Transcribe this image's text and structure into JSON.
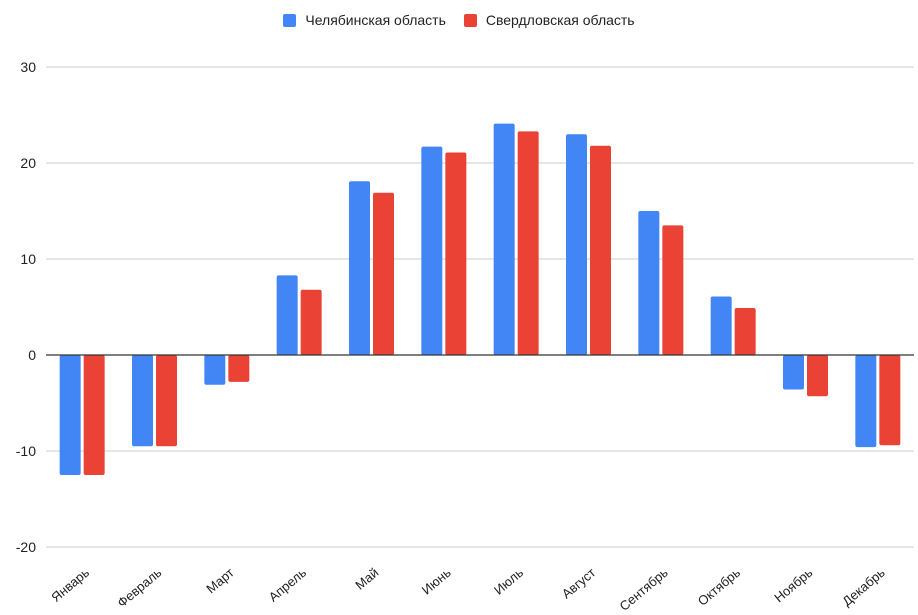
{
  "chart_data": {
    "type": "bar",
    "categories": [
      "Январь",
      "Февраль",
      "Март",
      "Апрель",
      "Май",
      "Июнь",
      "Июль",
      "Август",
      "Сентябрь",
      "Октябрь",
      "Ноябрь",
      "Декабрь"
    ],
    "series": [
      {
        "name": "Челябинская область",
        "color": "#4285F4",
        "values": [
          -12.5,
          -9.5,
          -3.1,
          8.3,
          18.1,
          21.7,
          24.1,
          23.0,
          15.0,
          6.1,
          -3.6,
          -9.6
        ]
      },
      {
        "name": "Свердловская область",
        "color": "#EA4335",
        "values": [
          -12.5,
          -9.5,
          -2.8,
          6.8,
          16.9,
          21.1,
          23.3,
          21.8,
          13.5,
          4.9,
          -4.3,
          -9.4
        ]
      }
    ],
    "yticks": [
      30,
      20,
      10,
      0,
      -10,
      -20
    ],
    "ylim": [
      -20,
      30
    ],
    "grid": true,
    "legend_position": "top-center",
    "title": "",
    "xlabel": "",
    "ylabel": ""
  }
}
